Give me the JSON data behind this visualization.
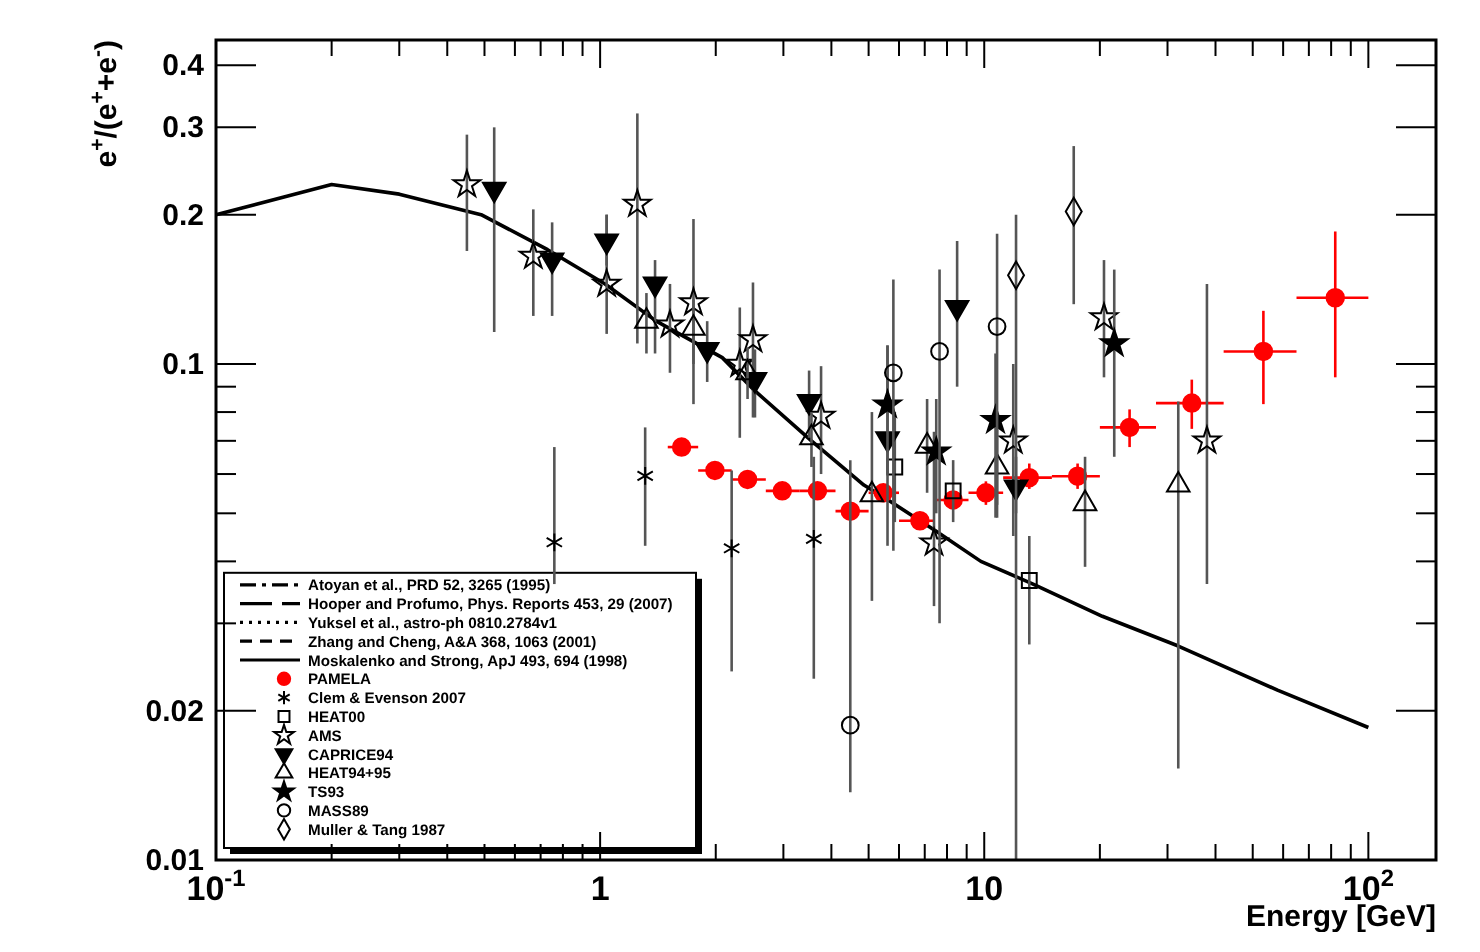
{
  "chart_data": {
    "type": "scatter",
    "xlabel": "Energy [GeV]",
    "ylabel": "e$^{+}$/(e$^{+}$+e$^{-}$)",
    "log": "xy",
    "grid": false,
    "legend": "bottom left",
    "xlim": [
      0.1,
      150
    ],
    "ylim": [
      0.01,
      0.45
    ],
    "xticks": [
      {
        "value": 0.1,
        "label": "10$^{-1}$"
      },
      {
        "value": 0.2,
        "label": null
      },
      {
        "value": 0.3,
        "label": null
      },
      {
        "value": 0.4,
        "label": null
      },
      {
        "value": 0.5,
        "label": null
      },
      {
        "value": 0.6,
        "label": null
      },
      {
        "value": 0.7,
        "label": null
      },
      {
        "value": 0.8,
        "label": null
      },
      {
        "value": 0.9,
        "label": null
      },
      1,
      {
        "value": 2,
        "label": null
      },
      {
        "value": 3,
        "label": null
      },
      {
        "value": 4,
        "label": null
      },
      {
        "value": 5,
        "label": null
      },
      {
        "value": 6,
        "label": null
      },
      {
        "value": 7,
        "label": null
      },
      {
        "value": 8,
        "label": null
      },
      {
        "value": 9,
        "label": null
      },
      10,
      {
        "value": 20,
        "label": null
      },
      {
        "value": 30,
        "label": null
      },
      {
        "value": 40,
        "label": null
      },
      {
        "value": 50,
        "label": null
      },
      {
        "value": 60,
        "label": null
      },
      {
        "value": 70,
        "label": null
      },
      {
        "value": 80,
        "label": null
      },
      {
        "value": 90,
        "label": null
      },
      {
        "value": 100,
        "label": "10$^{2}$"
      }
    ],
    "yticks": [
      0.01,
      0.02,
      {
        "value": 0.03,
        "label": null
      },
      {
        "value": 0.04,
        "label": null
      },
      {
        "value": 0.05,
        "label": null
      },
      {
        "value": 0.06,
        "label": null
      },
      {
        "value": 0.07,
        "label": null
      },
      {
        "value": 0.08,
        "label": null
      },
      {
        "value": 0.09,
        "label": null
      },
      0.1,
      0.2,
      0.3,
      0.4
    ],
    "series": [
      {
        "name": "Atoyan et al., PRD 52, 3265 (1995)",
        "type": "line",
        "line_style": "dashdot",
        "color": "#000000"
      },
      {
        "name": "Hooper and Profumo, Phys. Reports 453, 29 (2007)",
        "type": "line",
        "line_style": "longdash",
        "color": "#000000"
      },
      {
        "name": "Yuksel et al., astro-ph 0810.2784v1",
        "type": "line",
        "line_style": "dotted",
        "color": "#000000"
      },
      {
        "name": "Zhang and Cheng, A&A 368, 1063 (2001)",
        "type": "line",
        "line_style": "dashed",
        "color": "#000000"
      },
      {
        "name": "Moskalenko and Strong, ApJ 493, 694 (1998)",
        "type": "line",
        "line_style": "solid",
        "color": "#000000",
        "x": [
          0.1,
          0.2,
          0.3,
          0.49,
          0.73,
          1.03,
          1.4,
          2.08,
          2.5,
          3.55,
          4.86,
          5.66,
          7.5,
          9.8,
          13.4,
          20.3,
          32,
          58,
          100
        ],
        "values": [
          0.2,
          0.23,
          0.22,
          0.2,
          0.17,
          0.145,
          0.122,
          0.103,
          0.089,
          0.07,
          0.057,
          0.053,
          0.046,
          0.04,
          0.036,
          0.031,
          0.027,
          0.022,
          0.0185
        ]
      },
      {
        "name": "PAMELA",
        "marker": "circle",
        "color": "#ff0000",
        "x": [
          1.63,
          1.99,
          2.42,
          2.98,
          3.68,
          4.48,
          5.46,
          6.8,
          8.3,
          10.1,
          13.1,
          17.5,
          23.9,
          34.7,
          53.3,
          82
        ],
        "values": [
          0.068,
          0.061,
          0.0585,
          0.0555,
          0.0555,
          0.0505,
          0.055,
          0.0483,
          0.0532,
          0.055,
          0.059,
          0.0594,
          0.0745,
          0.0834,
          0.106,
          0.136
        ],
        "errors": [
          null,
          null,
          null,
          null,
          null,
          null,
          null,
          null,
          null,
          [
            0.052,
            0.058
          ],
          [
            0.056,
            0.063
          ],
          [
            0.056,
            0.063
          ],
          [
            0.068,
            0.081
          ],
          [
            0.074,
            0.093
          ],
          [
            0.083,
            0.128
          ],
          [
            0.094,
            0.185
          ]
        ],
        "xerrors": [
          [
            1.5,
            1.8
          ],
          [
            1.8,
            2.2
          ],
          [
            2.2,
            2.7
          ],
          [
            2.7,
            3.3
          ],
          [
            3.3,
            4.1
          ],
          [
            4.1,
            5
          ],
          [
            5,
            6
          ],
          [
            6,
            7.4
          ],
          [
            7.4,
            9.1
          ],
          [
            9.1,
            11.2
          ],
          [
            11.2,
            15
          ],
          [
            15,
            20
          ],
          [
            20,
            28
          ],
          [
            28,
            42
          ],
          [
            42,
            65
          ],
          [
            65,
            100
          ]
        ]
      },
      {
        "name": "Clem & Evenson 2007",
        "marker": "cross",
        "color": "#000000",
        "x": [
          0.76,
          1.31,
          2.2,
          3.6
        ],
        "values": [
          0.0437,
          0.0595,
          0.0425,
          0.0444
        ],
        "errors": [
          [
            0.036,
            0.068
          ],
          [
            0.043,
            0.0745
          ],
          [
            0.024,
            0.061
          ],
          [
            0.0232,
            0.065
          ]
        ]
      },
      {
        "name": "HEAT00",
        "marker": "square-open",
        "color": "#000000",
        "x": [
          5.85,
          8.3,
          13.1
        ],
        "values": [
          0.062,
          0.0555,
          0.0366
        ],
        "errors": [
          [
            0.048,
            0.08
          ],
          [
            0.048,
            0.064
          ],
          [
            0.0272,
            0.045
          ]
        ]
      },
      {
        "name": "AMS",
        "marker": "star-open",
        "color": "#000000",
        "x": [
          0.45,
          0.67,
          1.04,
          1.25,
          1.52,
          1.75,
          2.31,
          2.5,
          3.76,
          7.4,
          11.9,
          20.5,
          38
        ],
        "values": [
          0.23,
          0.165,
          0.145,
          0.21,
          0.12,
          0.133,
          0.1,
          0.112,
          0.0785,
          0.0436,
          0.07,
          0.124,
          0.07
        ],
        "errors": [
          [
            0.169,
            0.29
          ],
          [
            0.125,
            0.205
          ],
          [
            0.115,
            0.2
          ],
          [
            0.11,
            0.32
          ],
          [
            0.096,
            0.145
          ],
          [
            0.083,
            0.196
          ],
          [
            0.071,
            0.13
          ],
          [
            0.078,
            0.146
          ],
          [
            0.06,
            0.099
          ],
          [
            0.0325,
            0.073
          ],
          [
            0.045,
            0.1
          ],
          [
            0.094,
            0.162
          ],
          [
            0.036,
            0.145
          ]
        ]
      },
      {
        "name": "CAPRICE94",
        "marker": "triangle-down",
        "color": "#000000",
        "x": [
          0.53,
          0.75,
          1.04,
          1.39,
          1.9,
          2.53,
          3.5,
          5.6,
          8.5,
          12.1
        ],
        "values": [
          0.225,
          0.162,
          0.177,
          0.145,
          0.107,
          0.093,
          0.084,
          0.0707,
          0.13,
          0.0565
        ],
        "errors": [
          [
            0.116,
            0.3
          ],
          [
            0.125,
            0.193
          ],
          [
            0.158,
            0.2
          ],
          [
            0.105,
            0.162
          ],
          [
            0.092,
            0.122
          ],
          [
            0.078,
            0.107
          ],
          [
            0.071,
            0.097
          ],
          [
            0.043,
            0.109
          ],
          [
            0.09,
            0.177
          ],
          [
            0.05,
            0.065
          ]
        ]
      },
      {
        "name": "HEAT94+95",
        "marker": "triangle-open",
        "color": "#000000",
        "x": [
          1.32,
          1.75,
          2.42,
          3.55,
          5.1,
          7.1,
          10.8,
          18.3,
          32
        ],
        "values": [
          0.122,
          0.118,
          0.096,
          0.071,
          0.0545,
          0.0683,
          0.062,
          0.0523,
          0.057
        ],
        "errors": [
          [
            0.105,
            0.139
          ],
          [
            0.1,
            0.135
          ],
          [
            0.085,
            0.108
          ],
          [
            0.062,
            0.08
          ],
          [
            0.0333,
            0.08
          ],
          [
            0.055,
            0.085
          ],
          [
            0.052,
            0.075
          ],
          [
            0.039,
            0.065
          ],
          [
            0.0153,
            0.084
          ]
        ]
      },
      {
        "name": "TS93",
        "marker": "star",
        "color": "#000000",
        "x": [
          5.6,
          7.5,
          10.7,
          21.8
        ],
        "values": [
          0.0827,
          0.0665,
          0.077,
          0.11
        ],
        "errors": [
          [
            0.06,
            0.109
          ],
          [
            0.05,
            0.085
          ],
          [
            0.049,
            0.105
          ],
          [
            0.065,
            0.155
          ]
        ]
      },
      {
        "name": "MASS89",
        "marker": "circle-open",
        "color": "#000000",
        "x": [
          4.48,
          5.8,
          7.65,
          10.8
        ],
        "values": [
          0.0187,
          0.096,
          0.106,
          0.119
        ],
        "errors": [
          [
            0.0137,
            0.064
          ],
          [
            0.042,
            0.148
          ],
          [
            0.03,
            0.155
          ],
          [
            0.049,
            0.183
          ]
        ]
      },
      {
        "name": "Muller & Tang 1987",
        "marker": "diamond-open",
        "color": "#000000",
        "x": [
          12.1,
          17.1
        ],
        "values": [
          0.151,
          0.203
        ],
        "errors": [
          [
            0.01,
            0.2
          ],
          [
            0.132,
            0.275
          ]
        ]
      }
    ]
  }
}
